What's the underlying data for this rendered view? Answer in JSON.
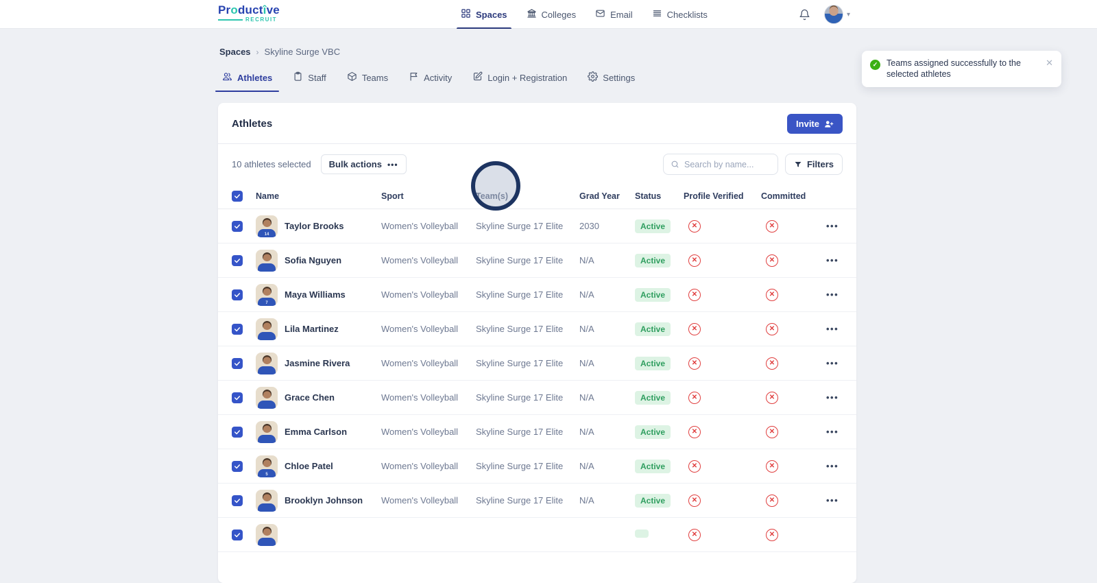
{
  "brand": {
    "name": "Productive",
    "sub": "RECRUIT"
  },
  "nav": {
    "items": [
      {
        "label": "Spaces",
        "icon": "grid-icon",
        "active": true
      },
      {
        "label": "Colleges",
        "icon": "building-icon",
        "active": false
      },
      {
        "label": "Email",
        "icon": "envelope-icon",
        "active": false
      },
      {
        "label": "Checklists",
        "icon": "list-icon",
        "active": false
      }
    ]
  },
  "breadcrumb": {
    "root": "Spaces",
    "separator": "›",
    "current": "Skyline Surge VBC"
  },
  "tabs": [
    {
      "label": "Athletes",
      "icon": "users-icon",
      "active": true
    },
    {
      "label": "Staff",
      "icon": "clipboard-icon",
      "active": false
    },
    {
      "label": "Teams",
      "icon": "cube-icon",
      "active": false
    },
    {
      "label": "Activity",
      "icon": "flag-icon",
      "active": false
    },
    {
      "label": "Login + Registration",
      "icon": "edit-icon",
      "active": false
    },
    {
      "label": "Settings",
      "icon": "gear-icon",
      "active": false
    }
  ],
  "toast": {
    "message": "Teams assigned successfully to the selected athletes",
    "close_label": "✕"
  },
  "panel": {
    "title": "Athletes",
    "invite_label": "Invite",
    "selected_text": "10 athletes selected",
    "bulk_actions_label": "Bulk actions",
    "bulk_dots": "•••",
    "search_placeholder": "Search by name...",
    "filters_label": "Filters",
    "columns": [
      "Name",
      "Sport",
      "Team(s)",
      "Grad Year",
      "Status",
      "Profile Verified",
      "Committed"
    ],
    "row_menu_glyph": "•••",
    "rows": [
      {
        "name": "Taylor Brooks",
        "sport": "Women's Volleyball",
        "teams": "Skyline Surge 17 Elite",
        "grad_year": "2030",
        "status": "Active",
        "jersey": "14",
        "profile_verified": false,
        "committed": false,
        "selected": true,
        "partial": false
      },
      {
        "name": "Sofia Nguyen",
        "sport": "Women's Volleyball",
        "teams": "Skyline Surge 17 Elite",
        "grad_year": "N/A",
        "status": "Active",
        "jersey": "",
        "profile_verified": false,
        "committed": false,
        "selected": true,
        "partial": false
      },
      {
        "name": "Maya Williams",
        "sport": "Women's Volleyball",
        "teams": "Skyline Surge 17 Elite",
        "grad_year": "N/A",
        "status": "Active",
        "jersey": "7",
        "profile_verified": false,
        "committed": false,
        "selected": true,
        "partial": false
      },
      {
        "name": "Lila Martinez",
        "sport": "Women's Volleyball",
        "teams": "Skyline Surge 17 Elite",
        "grad_year": "N/A",
        "status": "Active",
        "jersey": "",
        "profile_verified": false,
        "committed": false,
        "selected": true,
        "partial": false
      },
      {
        "name": "Jasmine Rivera",
        "sport": "Women's Volleyball",
        "teams": "Skyline Surge 17 Elite",
        "grad_year": "N/A",
        "status": "Active",
        "jersey": "",
        "profile_verified": false,
        "committed": false,
        "selected": true,
        "partial": false
      },
      {
        "name": "Grace Chen",
        "sport": "Women's Volleyball",
        "teams": "Skyline Surge 17 Elite",
        "grad_year": "N/A",
        "status": "Active",
        "jersey": "",
        "profile_verified": false,
        "committed": false,
        "selected": true,
        "partial": false
      },
      {
        "name": "Emma Carlson",
        "sport": "Women's Volleyball",
        "teams": "Skyline Surge 17 Elite",
        "grad_year": "N/A",
        "status": "Active",
        "jersey": "",
        "profile_verified": false,
        "committed": false,
        "selected": true,
        "partial": false
      },
      {
        "name": "Chloe Patel",
        "sport": "Women's Volleyball",
        "teams": "Skyline Surge 17 Elite",
        "grad_year": "N/A",
        "status": "Active",
        "jersey": "5",
        "profile_verified": false,
        "committed": false,
        "selected": true,
        "partial": false
      },
      {
        "name": "Brooklyn Johnson",
        "sport": "Women's Volleyball",
        "teams": "Skyline Surge 17 Elite",
        "grad_year": "N/A",
        "status": "Active",
        "jersey": "",
        "profile_verified": false,
        "committed": false,
        "selected": true,
        "partial": false
      },
      {
        "name": "",
        "sport": "",
        "teams": "",
        "grad_year": "",
        "status": "",
        "jersey": "",
        "profile_verified": false,
        "committed": false,
        "selected": true,
        "partial": true
      }
    ]
  },
  "colors": {
    "primary_blue": "#3a55c5",
    "brand_blue": "#2743b0",
    "brand_teal": "#2cc5ae",
    "active_nav": "#2c3a7c",
    "status_green_bg": "#ddf3e4",
    "status_green_text": "#2f9e5f",
    "error_red": "#e03e3e",
    "toast_green": "#3db014",
    "page_bg": "#eef0f4"
  }
}
